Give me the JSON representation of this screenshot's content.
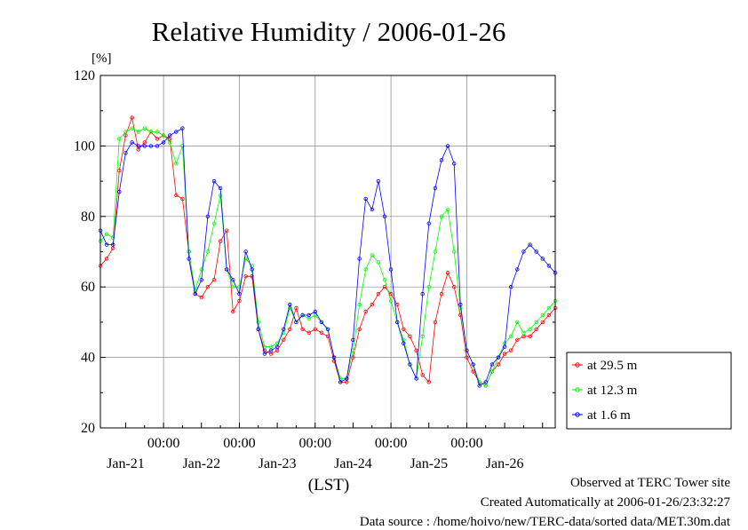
{
  "chart_data": {
    "type": "line",
    "title": "Relative Humidity / 2006-01-26",
    "ylabel_unit": "[%]",
    "xlabel": "(LST)",
    "ylim": [
      20,
      120
    ],
    "yticks": [
      20,
      40,
      60,
      80,
      100,
      120
    ],
    "xlim_hours": [
      -20,
      124
    ],
    "time_tick_label": "00:00",
    "day_labels": [
      "Jan-21",
      "Jan-22",
      "Jan-23",
      "Jan-24",
      "Jan-25",
      "Jan-26"
    ],
    "grid": true,
    "legend_position": "right-bottom",
    "series": [
      {
        "name": "at 29.5 m",
        "color": "#ff0000",
        "x": [
          -20,
          -18,
          -16,
          -14,
          -12,
          -10,
          -8,
          -6,
          -4,
          -2,
          0,
          2,
          4,
          6,
          8,
          10,
          12,
          14,
          16,
          18,
          20,
          22,
          24,
          26,
          28,
          30,
          32,
          34,
          36,
          38,
          40,
          42,
          44,
          46,
          48,
          50,
          52,
          54,
          56,
          58,
          60,
          62,
          64,
          66,
          68,
          70,
          72,
          74,
          76,
          78,
          80,
          82,
          84,
          86,
          88,
          90,
          92,
          94,
          96,
          98,
          100,
          102,
          104,
          106,
          108,
          110,
          112,
          114,
          116,
          118,
          120,
          122,
          124
        ],
        "y": [
          66,
          68,
          71,
          93,
          103,
          108,
          99,
          101,
          104,
          102,
          103,
          102,
          86,
          85,
          70,
          58,
          57,
          60,
          62,
          73,
          76,
          53,
          56,
          63,
          63,
          48,
          42,
          41,
          42,
          45,
          48,
          54,
          48,
          47,
          48,
          47,
          46,
          39,
          33,
          33,
          40,
          48,
          53,
          55,
          58,
          60,
          58,
          55,
          48,
          46,
          42,
          35,
          33,
          50,
          58,
          64,
          60,
          52,
          40,
          36,
          33,
          32,
          36,
          38,
          41,
          42,
          45,
          46,
          46,
          48,
          50,
          52,
          54
        ]
      },
      {
        "name": "at 12.3 m",
        "color": "#00ff00",
        "x": [
          -20,
          -18,
          -16,
          -14,
          -12,
          -10,
          -8,
          -6,
          -4,
          -2,
          0,
          2,
          4,
          6,
          8,
          10,
          12,
          14,
          16,
          18,
          20,
          22,
          24,
          26,
          28,
          30,
          32,
          34,
          36,
          38,
          40,
          42,
          44,
          46,
          48,
          50,
          52,
          54,
          56,
          58,
          60,
          62,
          64,
          66,
          68,
          70,
          72,
          74,
          76,
          78,
          80,
          82,
          84,
          86,
          88,
          90,
          92,
          94,
          96,
          98,
          100,
          102,
          104,
          106,
          108,
          110,
          112,
          114,
          116,
          118,
          120,
          122,
          124
        ],
        "y": [
          73,
          75,
          74,
          102,
          104,
          105,
          104,
          105,
          104,
          104,
          103,
          101,
          95,
          100,
          70,
          59,
          65,
          70,
          78,
          86,
          65,
          60,
          60,
          68,
          66,
          50,
          43,
          43,
          44,
          47,
          54,
          50,
          52,
          51,
          52,
          50,
          48,
          40,
          34,
          34,
          42,
          55,
          65,
          69,
          67,
          62,
          56,
          50,
          45,
          38,
          34,
          46,
          60,
          70,
          80,
          82,
          70,
          54,
          42,
          38,
          33,
          32,
          36,
          40,
          44,
          46,
          50,
          47,
          48,
          50,
          52,
          54,
          56
        ]
      },
      {
        "name": "at 1.6 m",
        "color": "#0000ff",
        "x": [
          -20,
          -18,
          -16,
          -14,
          -12,
          -10,
          -8,
          -6,
          -4,
          -2,
          0,
          2,
          4,
          6,
          8,
          10,
          12,
          14,
          16,
          18,
          20,
          22,
          24,
          26,
          28,
          30,
          32,
          34,
          36,
          38,
          40,
          42,
          44,
          46,
          48,
          50,
          52,
          54,
          56,
          58,
          60,
          62,
          64,
          66,
          68,
          70,
          72,
          74,
          76,
          78,
          80,
          82,
          84,
          86,
          88,
          90,
          92,
          94,
          96,
          98,
          100,
          102,
          104,
          106,
          108,
          110,
          112,
          114,
          116,
          118,
          120,
          122,
          124
        ],
        "y": [
          76,
          72,
          72,
          87,
          98,
          101,
          100,
          100,
          100,
          100,
          101,
          103,
          104,
          105,
          68,
          58,
          62,
          80,
          90,
          88,
          65,
          62,
          58,
          70,
          65,
          48,
          41,
          42,
          43,
          48,
          55,
          50,
          52,
          52,
          53,
          50,
          48,
          40,
          33,
          34,
          45,
          68,
          85,
          82,
          90,
          80,
          65,
          50,
          44,
          38,
          34,
          58,
          78,
          88,
          96,
          100,
          95,
          55,
          42,
          38,
          32,
          33,
          38,
          40,
          43,
          60,
          65,
          70,
          72,
          70,
          68,
          66,
          64
        ]
      }
    ]
  },
  "footer": {
    "observed": "Observed at TERC Tower site",
    "created": "Created Automatically at 2006-01-26/23:32:27",
    "source": "Data source : /home/hoivo/new/TERC-data/sorted  data/MET.30m.dat"
  }
}
